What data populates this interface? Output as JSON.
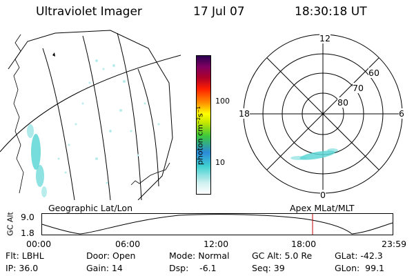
{
  "header": {
    "instrument": "Ultraviolet Imager",
    "date": "17 Jul 07",
    "time": "18:30:18 UT"
  },
  "colorbar": {
    "unit_label": "photon cm⁻²s⁻¹",
    "tick_100": "100",
    "tick_10": "10"
  },
  "polar_plot": {
    "mlt_top": "12",
    "mlt_left": "18",
    "mlt_right": "6",
    "mlt_bottom": "0",
    "lat_60": "60",
    "lat_70": "70",
    "lat_80": "80"
  },
  "orbit_plot": {
    "ylabel": "GC Alt",
    "y_max": "9.0",
    "y_min": "1.8",
    "left_label": "Geographic Lat/Lon",
    "right_label": "Apex MLat/MLT",
    "x_ticks": [
      "00:00",
      "06:00",
      "12:00",
      "18:00",
      "23:59"
    ],
    "marker_color": "#c00000"
  },
  "status": {
    "flt": "Flt: LBHL",
    "door": "Door: Open",
    "mode": "Mode: Normal",
    "gc_alt": "GC Alt: 5.0 Re",
    "glat": "GLat: -42.3",
    "ip": "IP: 36.0",
    "gain": "Gain: 14",
    "dsp": "Dsp:    -6.1",
    "seq": "Seq: 39",
    "glon": "GLon:  99.1"
  }
}
